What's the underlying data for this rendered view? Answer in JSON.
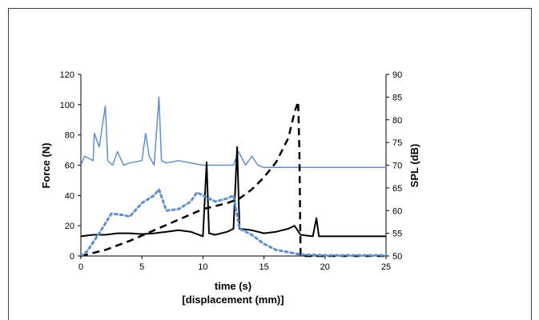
{
  "chart_data": {
    "type": "line",
    "xlabel": "time (s)",
    "xlabel2": "[displacement (mm)]",
    "ylabel_left": "Force (N)",
    "ylabel_right": "SPL (dB)",
    "xlim": [
      0,
      25
    ],
    "ylim_left": [
      0,
      120
    ],
    "ylim_right": [
      50,
      90
    ],
    "x_ticks": [
      "0",
      "5",
      "10",
      "15",
      "20",
      "25"
    ],
    "y_left_ticks": [
      "0",
      "20",
      "40",
      "60",
      "80",
      "100",
      "120"
    ],
    "y_right_ticks": [
      "50",
      "55",
      "60",
      "65",
      "70",
      "75",
      "80",
      "85",
      "90"
    ],
    "legend": "none",
    "grid": false,
    "colors": {
      "blue": "#5b8fd6",
      "black": "#000000"
    },
    "series": [
      {
        "axis": "right",
        "style": "solid-blue",
        "x": [
          0,
          0.3,
          1.0,
          1.1,
          1.5,
          2.0,
          2.2,
          2.6,
          3.0,
          3.5,
          4.0,
          5.0,
          5.3,
          5.6,
          6.0,
          6.4,
          6.6,
          7.0,
          8.0,
          9.0,
          10.0,
          11.0,
          12.0,
          12.5,
          12.9,
          13.5,
          14.0,
          14.5,
          15.0,
          16.0,
          17.0,
          18.0,
          20.0,
          22.0,
          25.0
        ],
        "y": [
          70,
          72,
          71,
          77,
          74,
          83,
          71,
          70,
          73,
          70,
          70.5,
          71,
          77,
          72,
          70,
          85,
          71,
          70.5,
          71,
          70.5,
          70,
          70,
          70,
          70,
          73,
          70,
          72,
          70,
          69.5,
          69.5,
          69.5,
          69.5,
          69.5,
          69.5,
          69.5
        ]
      },
      {
        "axis": "left",
        "style": "solid-black",
        "x": [
          0,
          1,
          2,
          3,
          4,
          5,
          6,
          7,
          8,
          9,
          10,
          10.3,
          10.5,
          11,
          12,
          12.5,
          12.8,
          13,
          14,
          15,
          16,
          17,
          17.5,
          18,
          19,
          19.3,
          19.5,
          20,
          21,
          22,
          23,
          24,
          25
        ],
        "y": [
          13,
          14,
          14,
          15,
          15,
          14.5,
          15,
          16,
          17,
          16,
          13,
          62,
          15,
          14,
          16,
          18,
          72,
          18,
          17,
          15,
          16,
          18,
          20,
          14,
          13,
          25,
          13,
          13,
          13,
          13,
          13,
          13,
          13
        ]
      },
      {
        "axis": "left",
        "style": "dashed-black",
        "x": [
          0,
          2,
          4,
          6,
          8,
          10,
          12,
          13,
          14,
          15,
          16,
          17,
          17.5,
          17.8,
          17.9,
          18.0,
          25
        ],
        "y": [
          0,
          4,
          10,
          17,
          24,
          31,
          35,
          38,
          44,
          52,
          62,
          78,
          95,
          102,
          70,
          0,
          0
        ]
      },
      {
        "axis": "left",
        "style": "dotted-blue",
        "x": [
          0,
          0.5,
          1.5,
          2.5,
          3.5,
          4.0,
          5.0,
          6.0,
          6.4,
          7.0,
          8.0,
          9.0,
          9.5,
          10.0,
          11.0,
          12.0,
          12.5,
          13.0,
          14.0,
          15.0,
          16.0,
          18.0,
          20.0,
          25.0
        ],
        "y": [
          0,
          3,
          15,
          28,
          27,
          26,
          35,
          40,
          44,
          30,
          31,
          36,
          42,
          40,
          36,
          38,
          40,
          18,
          14,
          8,
          4,
          1,
          0.5,
          0.5
        ]
      }
    ]
  }
}
